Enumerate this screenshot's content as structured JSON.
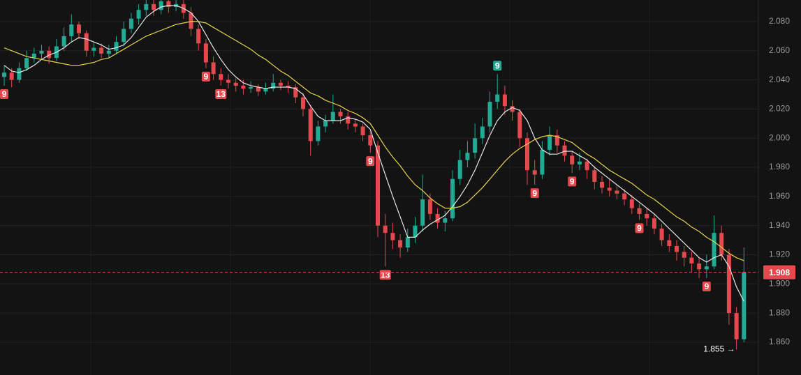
{
  "chart_data": {
    "type": "candlestick",
    "ylim": [
      1.8375,
      2.0948
    ],
    "yticks": [
      {
        "value": 2.08,
        "label": "2.080"
      },
      {
        "value": 2.06,
        "label": "2.060"
      },
      {
        "value": 2.04,
        "label": "2.040"
      },
      {
        "value": 2.02,
        "label": "2.020"
      },
      {
        "value": 2.0,
        "label": "2.000"
      },
      {
        "value": 1.98,
        "label": "1.980"
      },
      {
        "value": 1.96,
        "label": "1.960"
      },
      {
        "value": 1.94,
        "label": "1.940"
      },
      {
        "value": 1.92,
        "label": "1.920"
      },
      {
        "value": 1.9,
        "label": "1.900"
      },
      {
        "value": 1.88,
        "label": "1.880"
      },
      {
        "value": 1.86,
        "label": "1.860"
      }
    ],
    "grid": true,
    "up_color": "#22ab94",
    "down_color": "#e5484d",
    "ohlc": [
      [
        2.042,
        2.05,
        2.036,
        2.045
      ],
      [
        2.045,
        2.048,
        2.035,
        2.04
      ],
      [
        2.04,
        2.052,
        2.038,
        2.048
      ],
      [
        2.048,
        2.06,
        2.046,
        2.055
      ],
      [
        2.055,
        2.062,
        2.052,
        2.058
      ],
      [
        2.058,
        2.064,
        2.054,
        2.06
      ],
      [
        2.06,
        2.063,
        2.051,
        2.055
      ],
      [
        2.055,
        2.068,
        2.053,
        2.063
      ],
      [
        2.063,
        2.076,
        2.06,
        2.07
      ],
      [
        2.07,
        2.085,
        2.066,
        2.078
      ],
      [
        2.078,
        2.08,
        2.068,
        2.072
      ],
      [
        2.072,
        2.074,
        2.056,
        2.06
      ],
      [
        2.06,
        2.066,
        2.056,
        2.062
      ],
      [
        2.062,
        2.065,
        2.055,
        2.058
      ],
      [
        2.058,
        2.064,
        2.055,
        2.06
      ],
      [
        2.06,
        2.07,
        2.058,
        2.066
      ],
      [
        2.066,
        2.08,
        2.063,
        2.075
      ],
      [
        2.075,
        2.086,
        2.072,
        2.082
      ],
      [
        2.082,
        2.092,
        2.078,
        2.088
      ],
      [
        2.088,
        2.096,
        2.084,
        2.092
      ],
      [
        2.092,
        2.095,
        2.084,
        2.088
      ],
      [
        2.088,
        2.097,
        2.085,
        2.094
      ],
      [
        2.094,
        2.097,
        2.086,
        2.09
      ],
      [
        2.09,
        2.096,
        2.087,
        2.092
      ],
      [
        2.092,
        2.095,
        2.082,
        2.086
      ],
      [
        2.086,
        2.09,
        2.07,
        2.075
      ],
      [
        2.075,
        2.078,
        2.06,
        2.065
      ],
      [
        2.065,
        2.068,
        2.048,
        2.052
      ],
      [
        2.052,
        2.056,
        2.04,
        2.044
      ],
      [
        2.044,
        2.048,
        2.036,
        2.04
      ],
      [
        2.04,
        2.044,
        2.034,
        2.038
      ],
      [
        2.038,
        2.041,
        2.032,
        2.036
      ],
      [
        2.036,
        2.04,
        2.03,
        2.034
      ],
      [
        2.034,
        2.039,
        2.031,
        2.035
      ],
      [
        2.035,
        2.037,
        2.029,
        2.032
      ],
      [
        2.032,
        2.038,
        2.03,
        2.034
      ],
      [
        2.034,
        2.044,
        2.032,
        2.038
      ],
      [
        2.038,
        2.04,
        2.033,
        2.036
      ],
      [
        2.036,
        2.039,
        2.031,
        2.035
      ],
      [
        2.035,
        2.037,
        2.024,
        2.028
      ],
      [
        2.028,
        2.031,
        2.015,
        2.02
      ],
      [
        2.02,
        2.023,
        1.988,
        1.998
      ],
      [
        1.998,
        2.012,
        1.995,
        2.008
      ],
      [
        2.008,
        2.016,
        2.004,
        2.012
      ],
      [
        2.012,
        2.03,
        2.01,
        2.018
      ],
      [
        2.018,
        2.02,
        2.01,
        2.015
      ],
      [
        2.015,
        2.018,
        2.006,
        2.01
      ],
      [
        2.01,
        2.013,
        2.004,
        2.008
      ],
      [
        2.008,
        2.01,
        1.998,
        2.002
      ],
      [
        2.002,
        2.005,
        1.99,
        1.995
      ],
      [
        1.995,
        1.998,
        1.932,
        1.94
      ],
      [
        1.94,
        1.948,
        1.912,
        1.935
      ],
      [
        1.935,
        1.942,
        1.924,
        1.93
      ],
      [
        1.93,
        1.934,
        1.918,
        1.925
      ],
      [
        1.925,
        1.938,
        1.922,
        1.932
      ],
      [
        1.932,
        1.946,
        1.928,
        1.94
      ],
      [
        1.94,
        1.975,
        1.936,
        1.958
      ],
      [
        1.958,
        1.962,
        1.944,
        1.948
      ],
      [
        1.948,
        1.952,
        1.938,
        1.942
      ],
      [
        1.942,
        1.95,
        1.936,
        1.945
      ],
      [
        1.945,
        1.978,
        1.943,
        1.972
      ],
      [
        1.972,
        1.992,
        1.968,
        1.985
      ],
      [
        1.985,
        1.998,
        1.98,
        1.99
      ],
      [
        1.99,
        2.01,
        1.986,
        2.0
      ],
      [
        2.0,
        2.014,
        1.996,
        2.008
      ],
      [
        2.008,
        2.032,
        2.004,
        2.025
      ],
      [
        2.025,
        2.044,
        2.02,
        2.03
      ],
      [
        2.03,
        2.036,
        2.016,
        2.022
      ],
      [
        2.022,
        2.026,
        2.012,
        2.018
      ],
      [
        2.018,
        2.02,
        1.994,
        2.0
      ],
      [
        2.0,
        2.004,
        1.968,
        1.978
      ],
      [
        1.978,
        1.985,
        1.968,
        1.975
      ],
      [
        1.975,
        1.998,
        1.972,
        1.992
      ],
      [
        1.992,
        2.008,
        1.988,
        2.002
      ],
      [
        2.002,
        2.006,
        1.99,
        1.995
      ],
      [
        1.995,
        1.998,
        1.984,
        1.988
      ],
      [
        1.988,
        1.991,
        1.976,
        1.982
      ],
      [
        1.982,
        1.99,
        1.978,
        1.984
      ],
      [
        1.984,
        1.986,
        1.972,
        1.978
      ],
      [
        1.978,
        1.981,
        1.965,
        1.97
      ],
      [
        1.97,
        1.974,
        1.962,
        1.966
      ],
      [
        1.966,
        1.972,
        1.96,
        1.964
      ],
      [
        1.964,
        1.968,
        1.958,
        1.962
      ],
      [
        1.962,
        1.965,
        1.954,
        1.958
      ],
      [
        1.958,
        1.961,
        1.948,
        1.952
      ],
      [
        1.952,
        1.955,
        1.944,
        1.948
      ],
      [
        1.948,
        1.952,
        1.94,
        1.945
      ],
      [
        1.945,
        1.948,
        1.934,
        1.938
      ],
      [
        1.938,
        1.941,
        1.926,
        1.93
      ],
      [
        1.93,
        1.934,
        1.922,
        1.926
      ],
      [
        1.926,
        1.93,
        1.916,
        1.922
      ],
      [
        1.922,
        1.926,
        1.912,
        1.918
      ],
      [
        1.918,
        1.922,
        1.908,
        1.914
      ],
      [
        1.914,
        1.918,
        1.904,
        1.91
      ],
      [
        1.91,
        1.92,
        1.904,
        1.912
      ],
      [
        1.912,
        1.947,
        1.91,
        1.935
      ],
      [
        1.935,
        1.94,
        1.916,
        1.92
      ],
      [
        1.92,
        1.924,
        1.872,
        1.88
      ],
      [
        1.88,
        1.884,
        1.855,
        1.862
      ],
      [
        1.862,
        1.925,
        1.86,
        1.908
      ]
    ],
    "td_labels": [
      {
        "label": "9",
        "color": "#e5484d"
      },
      null,
      null,
      null,
      null,
      null,
      null,
      null,
      null,
      null,
      null,
      null,
      null,
      null,
      null,
      null,
      null,
      null,
      null,
      null,
      null,
      null,
      null,
      null,
      null,
      null,
      null,
      {
        "label": "9",
        "color": "#e5484d"
      },
      null,
      {
        "label": "13",
        "color": "#e5484d"
      },
      null,
      null,
      null,
      null,
      null,
      null,
      null,
      null,
      null,
      null,
      null,
      null,
      null,
      null,
      null,
      null,
      null,
      null,
      null,
      {
        "label": "9",
        "color": "#e5484d"
      },
      null,
      {
        "label": "13",
        "color": "#e5484d"
      },
      null,
      null,
      null,
      null,
      null,
      null,
      null,
      null,
      null,
      null,
      null,
      null,
      null,
      null,
      {
        "label": "9",
        "color": "#22ab94",
        "above": true
      },
      null,
      null,
      null,
      null,
      {
        "label": "9",
        "color": "#e5484d"
      },
      null,
      null,
      null,
      null,
      {
        "label": "9",
        "color": "#e5484d"
      },
      null,
      null,
      null,
      null,
      null,
      null,
      null,
      null,
      {
        "label": "9",
        "color": "#e5484d"
      },
      null,
      null,
      null,
      null,
      null,
      null,
      null,
      null,
      {
        "label": "9",
        "color": "#e5484d"
      },
      null,
      null,
      null,
      null,
      null
    ],
    "moving_averages": [
      {
        "color": "#e6e6e6",
        "values": [
          2.05,
          2.046,
          2.045,
          2.047,
          2.05,
          2.054,
          2.057,
          2.059,
          2.062,
          2.066,
          2.069,
          2.068,
          2.066,
          2.064,
          2.061,
          2.062,
          2.064,
          2.069,
          2.076,
          2.083,
          2.087,
          2.09,
          2.091,
          2.091,
          2.089,
          2.086,
          2.08,
          2.071,
          2.062,
          2.054,
          2.047,
          2.042,
          2.038,
          2.036,
          2.035,
          2.034,
          2.035,
          2.035,
          2.035,
          2.034,
          2.03,
          2.022,
          2.015,
          2.012,
          2.012,
          2.012,
          2.014,
          2.013,
          2.011,
          2.006,
          1.99,
          1.975,
          1.96,
          1.946,
          1.932,
          1.932,
          1.937,
          1.941,
          1.944,
          1.947,
          1.953,
          1.96,
          1.968,
          1.978,
          1.99,
          2.002,
          2.012,
          2.018,
          2.021,
          2.019,
          2.012,
          2.0,
          1.992,
          1.989,
          1.989,
          1.991,
          1.991,
          1.988,
          1.985,
          1.98,
          1.976,
          1.972,
          1.968,
          1.964,
          1.96,
          1.956,
          1.952,
          1.948,
          1.943,
          1.938,
          1.933,
          1.928,
          1.923,
          1.918,
          1.915,
          1.918,
          1.92,
          1.912,
          1.898,
          1.888
        ]
      },
      {
        "color": "#e8d44d",
        "values": [
          2.062,
          2.06,
          2.058,
          2.056,
          2.055,
          2.054,
          2.053,
          2.052,
          2.051,
          2.05,
          2.05,
          2.051,
          2.052,
          2.054,
          2.055,
          2.058,
          2.061,
          2.064,
          2.067,
          2.07,
          2.072,
          2.074,
          2.076,
          2.078,
          2.079,
          2.08,
          2.08,
          2.079,
          2.076,
          2.073,
          2.07,
          2.067,
          2.064,
          2.061,
          2.057,
          2.054,
          2.05,
          2.046,
          2.043,
          2.039,
          2.035,
          2.031,
          2.029,
          2.026,
          2.024,
          2.022,
          2.019,
          2.017,
          2.014,
          2.01,
          2.002,
          1.994,
          1.987,
          1.981,
          1.974,
          1.968,
          1.964,
          1.959,
          1.955,
          1.952,
          1.952,
          1.953,
          1.956,
          1.961,
          1.966,
          1.972,
          1.978,
          1.984,
          1.989,
          1.993,
          1.996,
          1.999,
          2.001,
          2.002,
          2.001,
          1.999,
          1.997,
          1.993,
          1.989,
          1.986,
          1.982,
          1.978,
          1.975,
          1.972,
          1.969,
          1.965,
          1.961,
          1.958,
          1.954,
          1.95,
          1.946,
          1.943,
          1.939,
          1.936,
          1.932,
          1.929,
          1.925,
          1.921,
          1.918,
          1.916
        ]
      }
    ],
    "last_price": 1.908,
    "last_price_color": "#e5484d",
    "low_annotation": {
      "value": 1.855,
      "label": "1.855 →"
    }
  }
}
